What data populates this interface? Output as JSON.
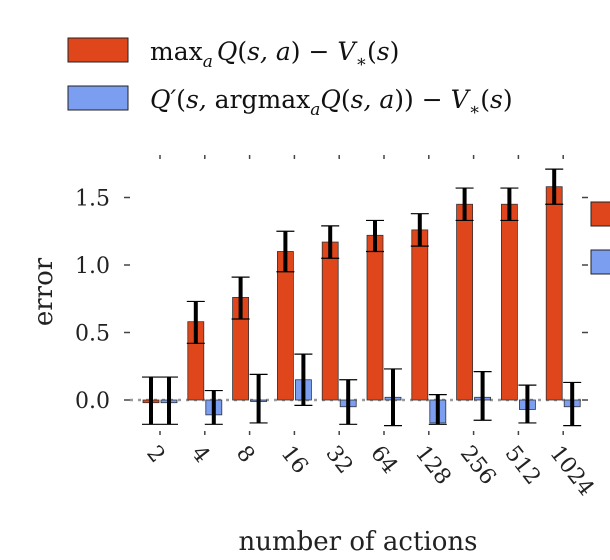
{
  "chart_data": {
    "type": "bar",
    "xlabel": "number of actions",
    "ylabel": "error",
    "categories": [
      "2",
      "4",
      "8",
      "16",
      "32",
      "64",
      "128",
      "256",
      "512",
      "1024"
    ],
    "ylim": [
      -0.2,
      1.75
    ],
    "yticks": [
      {
        "value": 0.0,
        "label": "0.0"
      },
      {
        "value": 0.5,
        "label": "0.5"
      },
      {
        "value": 1.0,
        "label": "1.0"
      },
      {
        "value": 1.5,
        "label": "1.5"
      }
    ],
    "grid": false,
    "legend": "top-left",
    "series": [
      {
        "name": "max_a Q(s,a) − V_*(s)",
        "color": "#e0461b",
        "values": [
          -0.02,
          0.58,
          0.76,
          1.1,
          1.17,
          1.22,
          1.26,
          1.45,
          1.45,
          1.58
        ],
        "err_low": [
          0.16,
          0.16,
          0.16,
          0.15,
          0.12,
          0.12,
          0.12,
          0.12,
          0.12,
          0.13
        ],
        "err_high": [
          0.19,
          0.15,
          0.15,
          0.15,
          0.12,
          0.11,
          0.12,
          0.12,
          0.12,
          0.13
        ]
      },
      {
        "name": "Q′(s, argmax_a Q(s,a)) − V_*(s)",
        "color": "#7b9ef0",
        "values": [
          -0.02,
          -0.11,
          -0.01,
          0.15,
          -0.05,
          0.02,
          -0.17,
          0.02,
          -0.07,
          -0.05
        ],
        "err_low": [
          0.16,
          0.07,
          0.16,
          0.19,
          0.13,
          0.21,
          0.01,
          0.17,
          0.1,
          0.14
        ],
        "err_high": [
          0.19,
          0.18,
          0.2,
          0.19,
          0.2,
          0.21,
          0.21,
          0.19,
          0.18,
          0.18
        ]
      }
    ]
  }
}
